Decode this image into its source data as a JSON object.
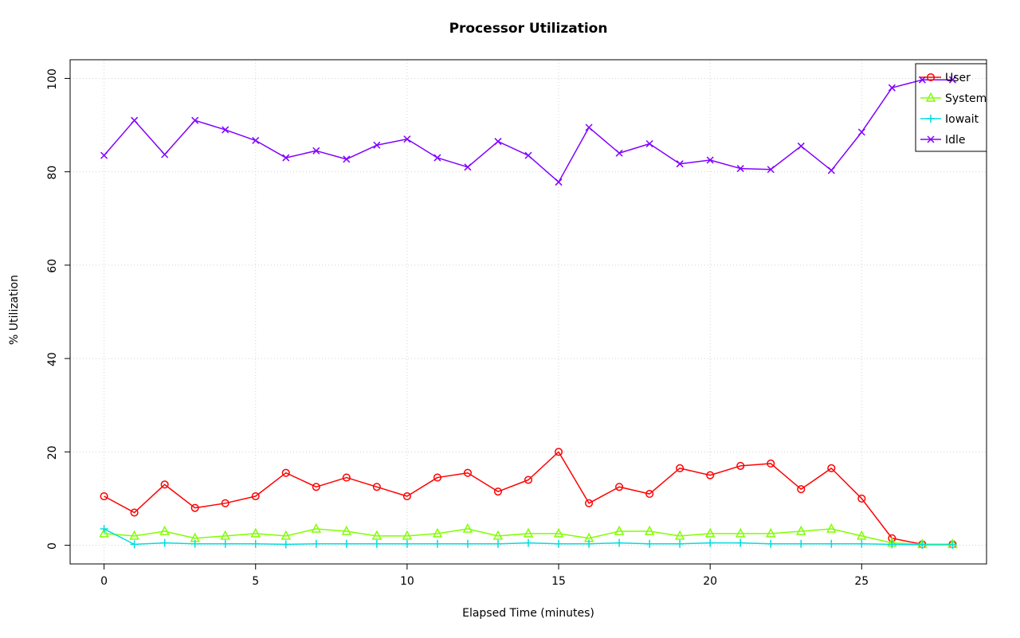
{
  "chart_data": {
    "type": "line",
    "title": "Processor Utilization",
    "xlabel": "Elapsed Time (minutes)",
    "ylabel": "% Utilization",
    "xlim": [
      0,
      28
    ],
    "ylim": [
      0,
      100
    ],
    "x_ticks": [
      0,
      5,
      10,
      15,
      20,
      25
    ],
    "y_ticks": [
      0,
      20,
      40,
      60,
      80,
      100
    ],
    "grid": true,
    "grid_color": "#d3d3d3",
    "legend_position": "top-right",
    "x": [
      0,
      1,
      2,
      3,
      4,
      5,
      6,
      7,
      8,
      9,
      10,
      11,
      12,
      13,
      14,
      15,
      16,
      17,
      18,
      19,
      20,
      21,
      22,
      23,
      24,
      25,
      26,
      27,
      28
    ],
    "series": [
      {
        "name": "User",
        "color": "#FF0000",
        "marker": "circle",
        "values": [
          10.5,
          7,
          13,
          8,
          9,
          10.5,
          15.5,
          12.5,
          14.5,
          12.5,
          10.5,
          14.5,
          15.5,
          11.5,
          14,
          20,
          9,
          12.5,
          11,
          16.5,
          15,
          17,
          17.5,
          12,
          16.5,
          10,
          1.5,
          0.2,
          0.2
        ]
      },
      {
        "name": "System",
        "color": "#80FF00",
        "marker": "triangle",
        "values": [
          2.5,
          2,
          3,
          1.5,
          2,
          2.5,
          2,
          3.5,
          3,
          2,
          2,
          2.5,
          3.5,
          2,
          2.5,
          2.5,
          1.5,
          3,
          3,
          2,
          2.5,
          2.5,
          2.5,
          3,
          3.5,
          2,
          0.5,
          0.2,
          0.2
        ]
      },
      {
        "name": "Iowait",
        "color": "#00DDE0",
        "marker": "plus",
        "values": [
          3.5,
          0.2,
          0.5,
          0.3,
          0.3,
          0.3,
          0.2,
          0.3,
          0.3,
          0.3,
          0.3,
          0.3,
          0.3,
          0.3,
          0.5,
          0.3,
          0.3,
          0.5,
          0.3,
          0.3,
          0.5,
          0.5,
          0.3,
          0.3,
          0.3,
          0.3,
          0.2,
          0.1,
          0.1
        ]
      },
      {
        "name": "Idle",
        "color": "#8000FF",
        "marker": "x",
        "values": [
          83.5,
          91,
          83.7,
          91,
          89,
          86.7,
          83,
          84.5,
          82.7,
          85.7,
          87,
          83,
          81,
          86.5,
          83.5,
          77.8,
          89.5,
          84,
          86,
          81.7,
          82.5,
          80.7,
          80.5,
          85.5,
          80.3,
          88.5,
          98,
          99.7,
          99.7
        ]
      }
    ]
  }
}
